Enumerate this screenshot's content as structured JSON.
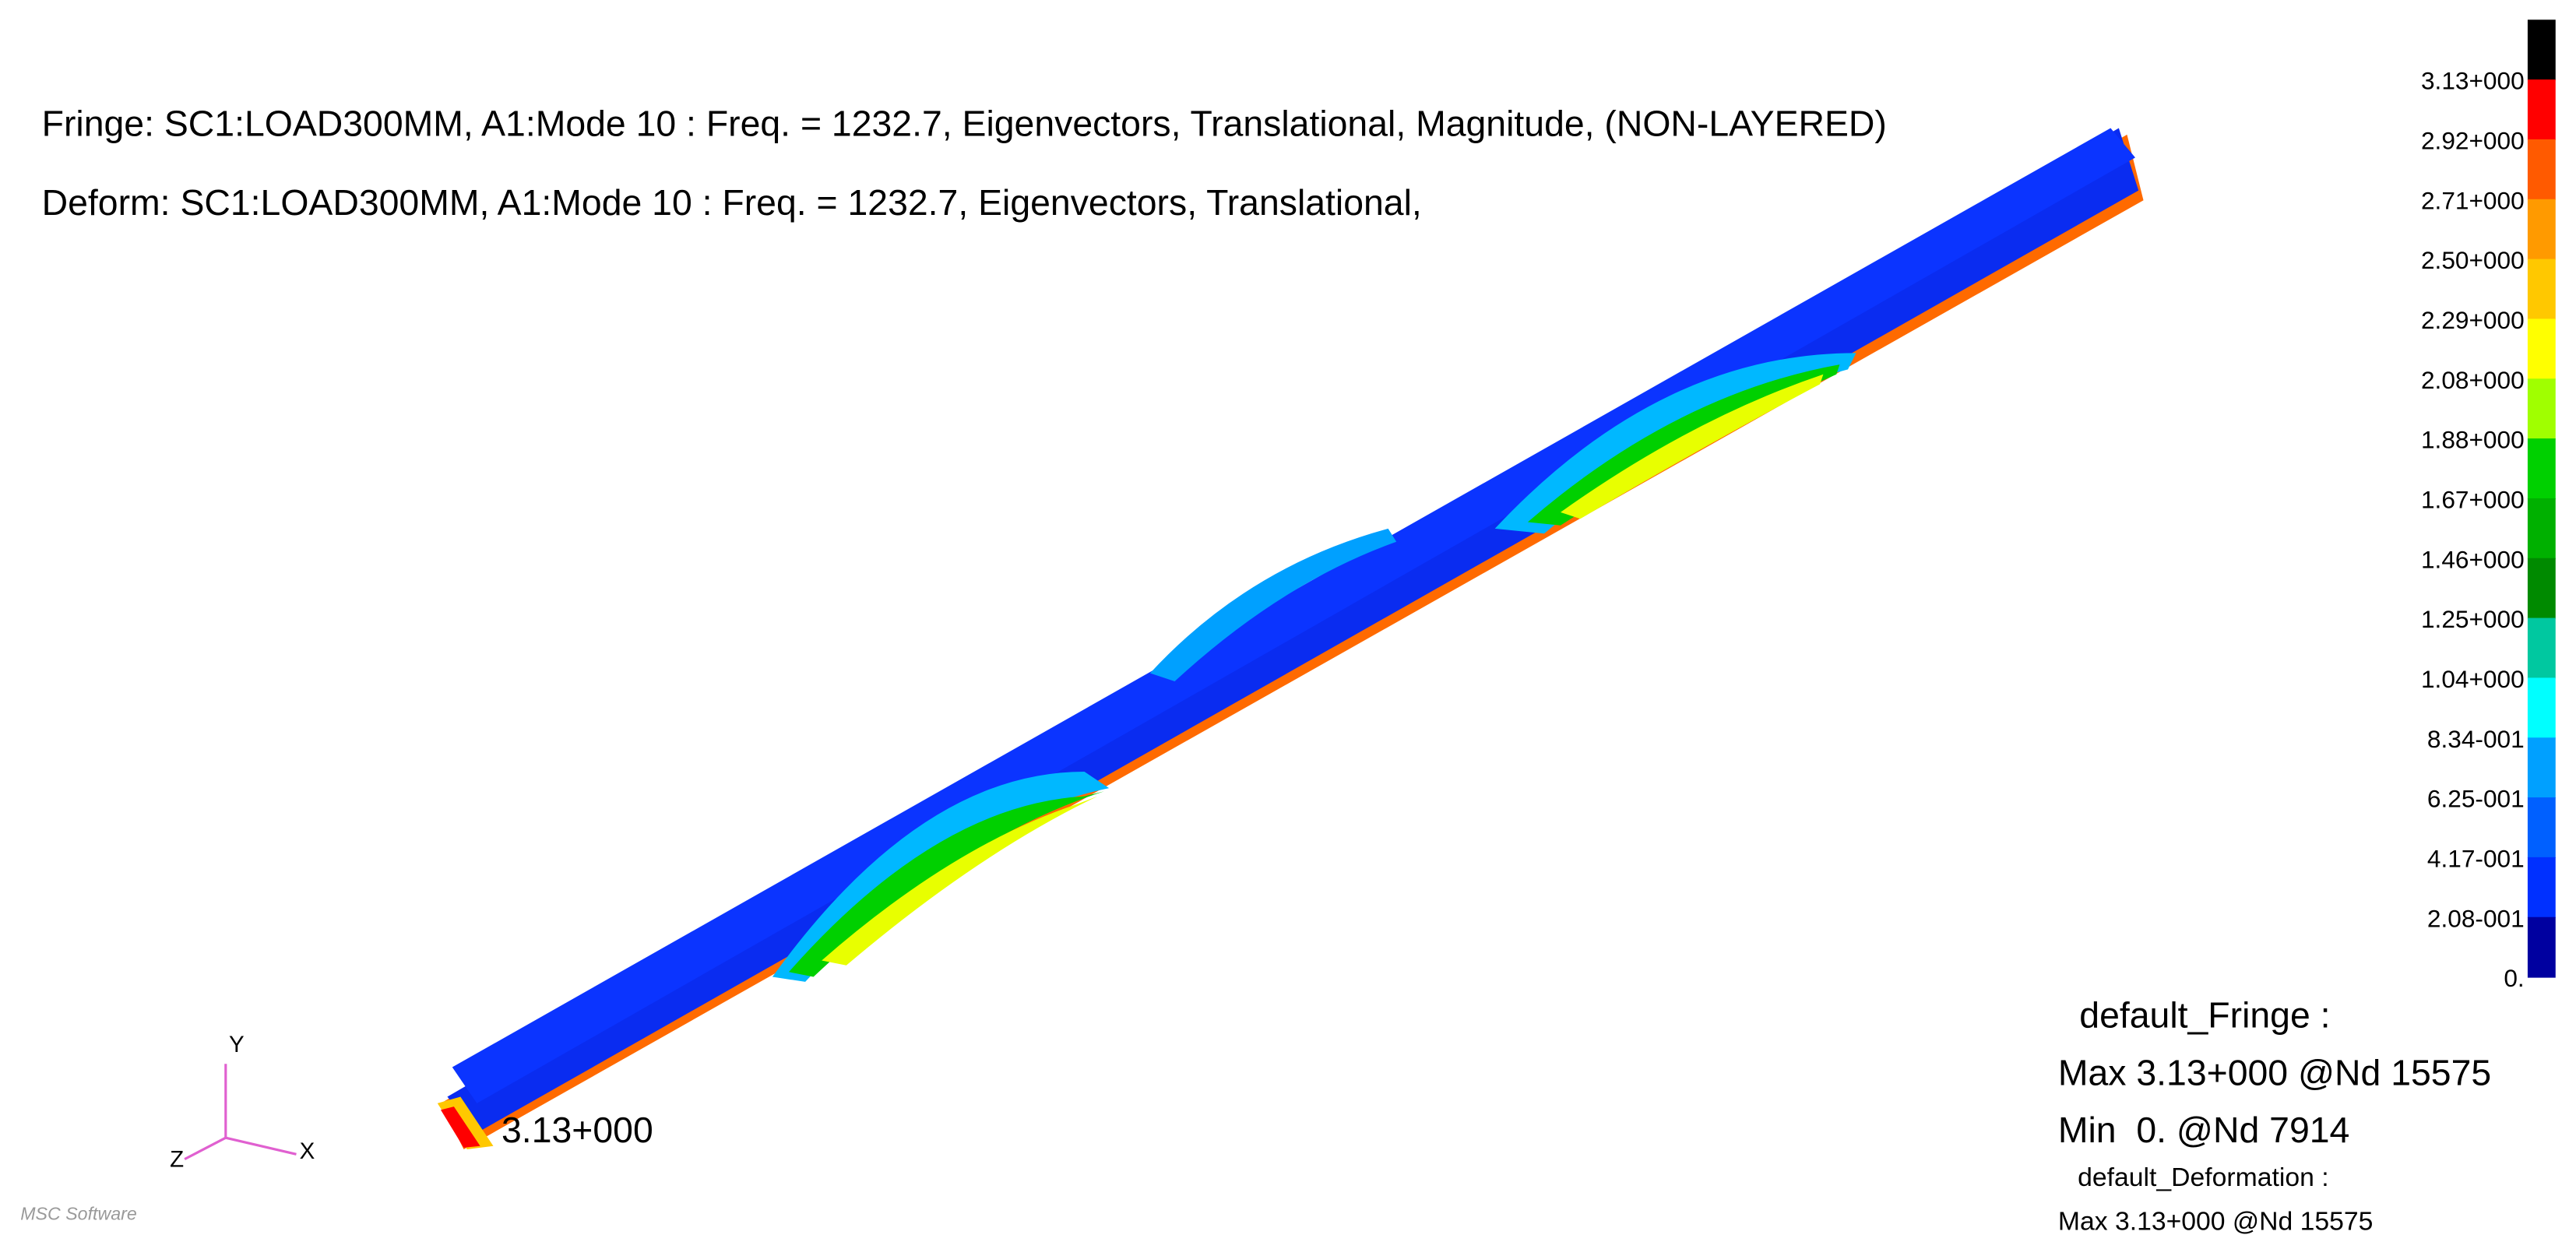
{
  "header": {
    "fringe": "Fringe: SC1:LOAD300MM, A1:Mode 10 : Freq. = 1232.7, Eigenvectors, Translational, Magnitude, (NON-LAYERED)",
    "deform": "Deform: SC1:LOAD300MM, A1:Mode 10 : Freq. = 1232.7, Eigenvectors, Translational,"
  },
  "legend": {
    "labels": [
      "3.13+000",
      "2.92+000",
      "2.71+000",
      "2.50+000",
      "2.29+000",
      "2.08+000",
      "1.88+000",
      "1.67+000",
      "1.46+000",
      "1.25+000",
      "1.04+000",
      "8.34-001",
      "6.25-001",
      "4.17-001",
      "2.08-001",
      "0."
    ],
    "colors": [
      "#000000",
      "#ff0000",
      "#ff5a00",
      "#ff9a00",
      "#ffc800",
      "#ffff00",
      "#a0ff00",
      "#00d000",
      "#00b000",
      "#008a00",
      "#00c8a0",
      "#00ffff",
      "#00a0ff",
      "#0060ff",
      "#0030ff",
      "#0000a0"
    ]
  },
  "info": {
    "fringe_title": "default_Fringe :",
    "fringe_max": "Max 3.13+000 @Nd 15575",
    "fringe_min": "Min  0. @Nd 7914",
    "deformation_title": "default_Deformation :",
    "deformation_max": "Max 3.13+000 @Nd 15575"
  },
  "model": {
    "max_label": "3.13+000",
    "axes": [
      "Y",
      "Z",
      "X"
    ]
  },
  "logo": "MSC Software"
}
